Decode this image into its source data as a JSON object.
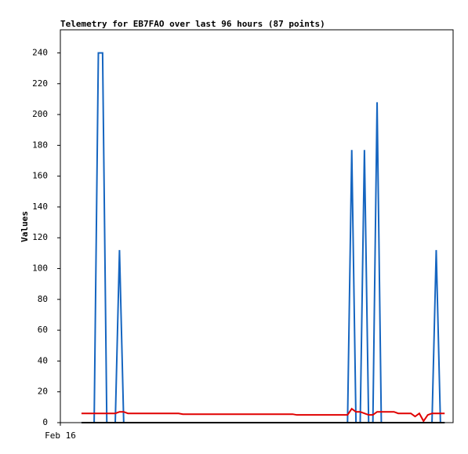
{
  "chart_data": {
    "type": "line",
    "title": "Telemetry for EB7FAO over last 96 hours (87 points)",
    "y_label": "Values",
    "x": [
      0,
      1,
      2,
      3,
      4,
      5,
      6,
      7,
      8,
      9,
      10,
      11,
      12,
      13,
      14,
      15,
      16,
      17,
      18,
      19,
      20,
      21,
      22,
      23,
      24,
      25,
      26,
      27,
      28,
      29,
      30,
      31,
      32,
      33,
      34,
      35,
      36,
      37,
      38,
      39,
      40,
      41,
      42,
      43,
      44,
      45,
      46,
      47,
      48,
      49,
      50,
      51,
      52,
      53,
      54,
      55,
      56,
      57,
      58,
      59,
      60,
      61,
      62,
      63,
      64,
      65,
      66,
      67,
      68,
      69,
      70,
      71,
      72,
      73,
      74,
      75,
      76,
      77,
      78,
      79,
      80,
      81,
      82,
      83,
      84,
      85,
      86
    ],
    "xlim": [
      -5,
      88
    ],
    "xticks": [
      {
        "value": -5,
        "label": "Feb 16"
      }
    ],
    "ylim": [
      0,
      255
    ],
    "yticks": [
      0,
      20,
      40,
      60,
      80,
      100,
      120,
      140,
      160,
      180,
      200,
      220,
      240
    ],
    "series": [
      {
        "color": "#1565c0",
        "values": [
          0,
          0,
          0,
          0,
          240,
          240,
          0,
          0,
          0,
          112,
          0,
          0,
          0,
          0,
          0,
          0,
          0,
          0,
          0,
          0,
          0,
          0,
          0,
          0,
          0,
          0,
          0,
          0,
          0,
          0,
          0,
          0,
          0,
          0,
          0,
          0,
          0,
          0,
          0,
          0,
          0,
          0,
          0,
          0,
          0,
          0,
          0,
          0,
          0,
          0,
          0,
          0,
          0,
          0,
          0,
          0,
          0,
          0,
          0,
          0,
          0,
          0,
          0,
          0,
          177,
          0,
          0,
          177,
          0,
          0,
          208,
          0,
          0,
          0,
          0,
          0,
          0,
          0,
          0,
          0,
          0,
          0,
          0,
          0,
          112,
          0,
          0
        ]
      },
      {
        "color": "#e00000",
        "values": [
          6,
          6,
          6,
          6,
          6,
          6,
          6,
          6,
          6,
          7,
          7,
          6,
          6,
          6,
          6,
          6,
          6,
          6,
          6,
          6,
          6,
          6,
          6,
          6,
          5.5,
          5.5,
          5.5,
          5.5,
          5.5,
          5.5,
          5.5,
          5.5,
          5.5,
          5.5,
          5.5,
          5.5,
          5.5,
          5.5,
          5.5,
          5.5,
          5.5,
          5.5,
          5.5,
          5.5,
          5.5,
          5.5,
          5.5,
          5.5,
          5.5,
          5.5,
          5.5,
          5,
          5,
          5,
          5,
          5,
          5,
          5,
          5,
          5,
          5,
          5,
          5,
          5,
          9,
          7,
          7,
          6,
          5,
          5,
          7,
          7,
          7,
          7,
          7,
          6,
          6,
          6,
          6,
          4,
          6,
          1,
          5,
          6,
          6,
          6,
          6
        ]
      },
      {
        "color": "#000000",
        "values": [
          0,
          0,
          0,
          0,
          0,
          0,
          0,
          0,
          0,
          0,
          0,
          0,
          0,
          0,
          0,
          0,
          0,
          0,
          0,
          0,
          0,
          0,
          0,
          0,
          0,
          0,
          0,
          0,
          0,
          0,
          0,
          0,
          0,
          0,
          0,
          0,
          0,
          0,
          0,
          0,
          0,
          0,
          0,
          0,
          0,
          0,
          0,
          0,
          0,
          0,
          0,
          0,
          0,
          0,
          0,
          0,
          0,
          0,
          0,
          0,
          0,
          0,
          0,
          0,
          0,
          0,
          0,
          0,
          0,
          0,
          0,
          0,
          0,
          0,
          0,
          0,
          0,
          0,
          0,
          0,
          0,
          0,
          0,
          0,
          0,
          0,
          0
        ]
      }
    ]
  }
}
